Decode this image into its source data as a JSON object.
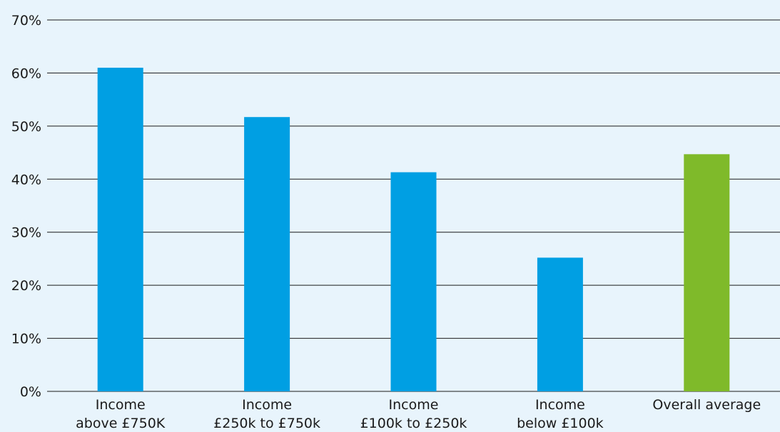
{
  "chart_data": {
    "type": "bar",
    "categories": [
      [
        "Income",
        "above £750K"
      ],
      [
        "Income",
        "£250k to £750k"
      ],
      [
        "Income",
        "£100k to £250k"
      ],
      [
        "Income",
        "below £100k"
      ],
      [
        "Overall average"
      ]
    ],
    "values": [
      61,
      51.7,
      41.3,
      25.2,
      44.7
    ],
    "bar_colors": [
      "#009fe3",
      "#009fe3",
      "#009fe3",
      "#009fe3",
      "#7fba2a"
    ],
    "ylim": [
      0,
      70
    ],
    "yticks": [
      {
        "value": 0,
        "label": "0%"
      },
      {
        "value": 10,
        "label": "10%"
      },
      {
        "value": 20,
        "label": "20%"
      },
      {
        "value": 30,
        "label": "30%"
      },
      {
        "value": 40,
        "label": "40%"
      },
      {
        "value": 50,
        "label": "50%"
      },
      {
        "value": 60,
        "label": "60%"
      },
      {
        "value": 70,
        "label": "70%"
      }
    ],
    "grid": true,
    "background_color": "#e8f4fc"
  }
}
